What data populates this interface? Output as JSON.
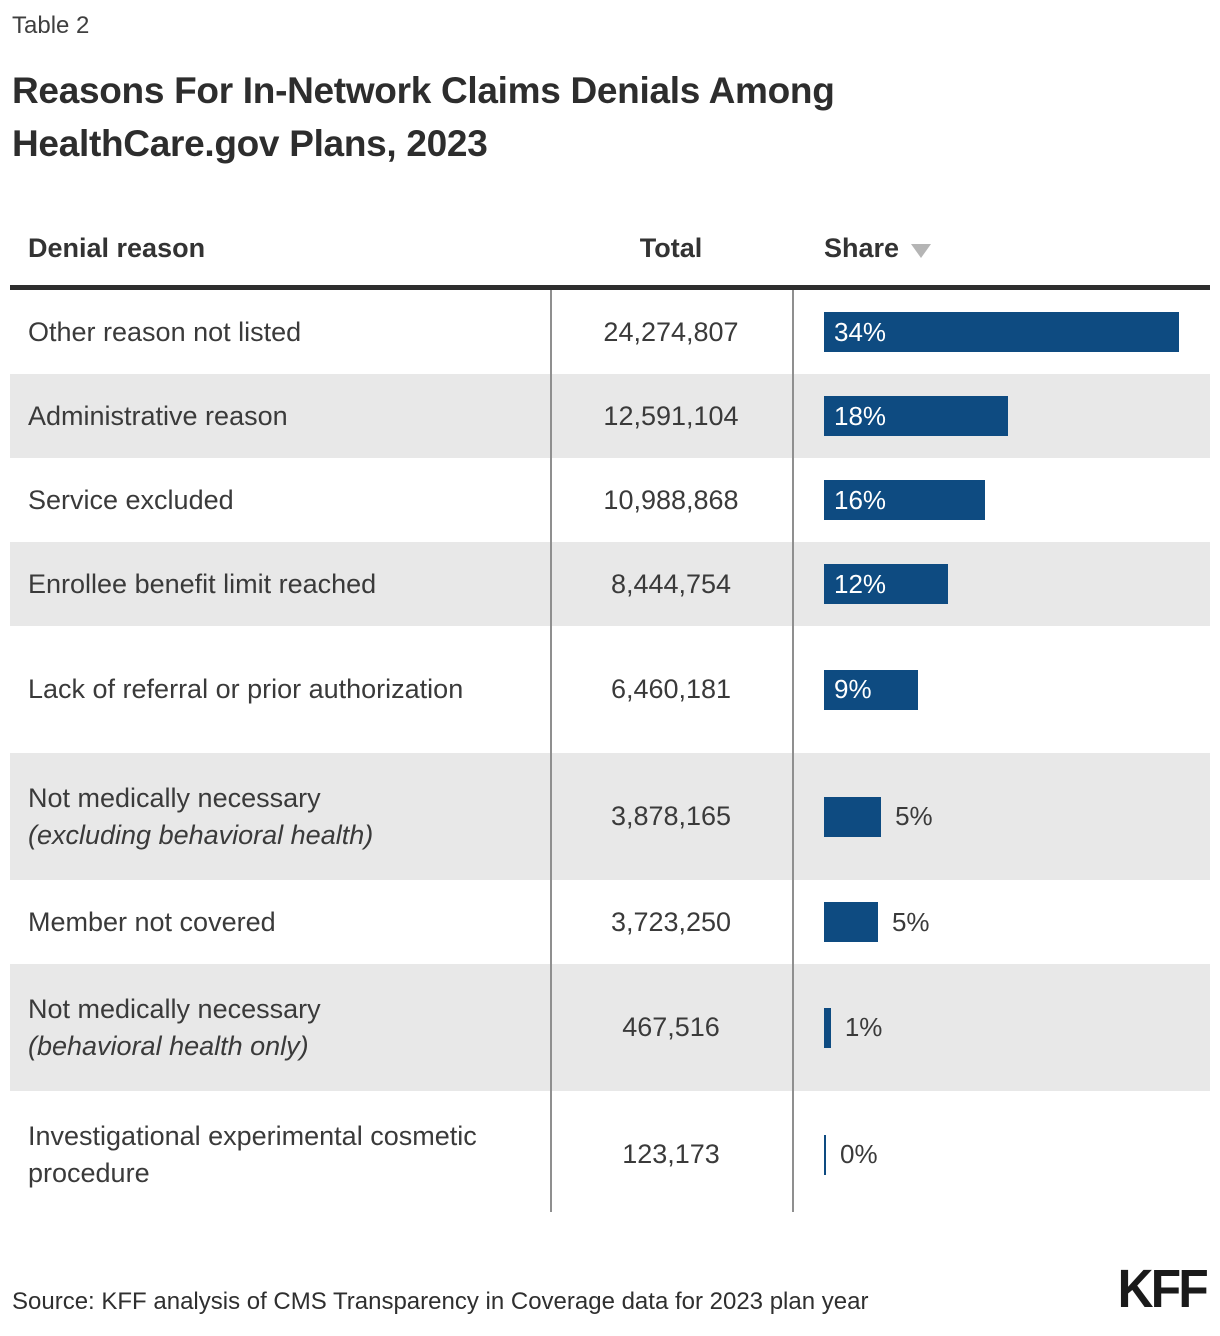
{
  "page": {
    "kicker": "Table 2",
    "title_line1": "Reasons For In-Network Claims Denials Among",
    "title_line2": "HealthCare.gov Plans, 2023",
    "source": "Source: KFF analysis of CMS Transparency in Coverage data for 2023 plan year",
    "logo": "KFF"
  },
  "columns": {
    "reason": "Denial reason",
    "total": "Total",
    "share": "Share"
  },
  "colors": {
    "bar_blue": "#0e4b81",
    "row_alt_gray": "#e8e8e8",
    "header_rule": "#2e2e2e"
  },
  "rows": [
    {
      "reason": "Other reason not listed",
      "note": "",
      "total": "24,274,807",
      "share_label": "34%",
      "share_pct": 34.2,
      "label_position": "inside"
    },
    {
      "reason": "Administrative reason",
      "note": "",
      "total": "12,591,104",
      "share_label": "18%",
      "share_pct": 17.7,
      "label_position": "inside"
    },
    {
      "reason": "Service excluded",
      "note": "",
      "total": "10,988,868",
      "share_label": "16%",
      "share_pct": 15.5,
      "label_position": "inside"
    },
    {
      "reason": "Enrollee benefit limit reached",
      "note": "",
      "total": "8,444,754",
      "share_label": "12%",
      "share_pct": 11.9,
      "label_position": "inside"
    },
    {
      "reason": "Lack of referral or prior authorization",
      "note": "",
      "total": "6,460,181",
      "share_label": "9%",
      "share_pct": 9.1,
      "label_position": "inside"
    },
    {
      "reason": "Not medically necessary",
      "note": "(excluding behavioral health)",
      "total": "3,878,165",
      "share_label": "5%",
      "share_pct": 5.5,
      "label_position": "outside"
    },
    {
      "reason": "Member not covered",
      "note": "",
      "total": "3,723,250",
      "share_label": "5%",
      "share_pct": 5.2,
      "label_position": "outside"
    },
    {
      "reason": "Not medically necessary",
      "note": "(behavioral health only)",
      "total": "467,516",
      "share_label": "1%",
      "share_pct": 0.66,
      "label_position": "outside"
    },
    {
      "reason": "Investigational experimental cosmetic procedure",
      "note": "",
      "total": "123,173",
      "share_label": "0%",
      "share_pct": 0.17,
      "label_position": "outside"
    }
  ],
  "chart_data": {
    "type": "bar",
    "title": "Reasons For In-Network Claims Denials Among HealthCare.gov Plans, 2023",
    "categories": [
      "Other reason not listed",
      "Administrative reason",
      "Service excluded",
      "Enrollee benefit limit reached",
      "Lack of referral or prior authorization",
      "Not medically necessary (excluding behavioral health)",
      "Member not covered",
      "Not medically necessary (behavioral health only)",
      "Investigational experimental cosmetic procedure"
    ],
    "series": [
      {
        "name": "Total",
        "values": [
          24274807,
          12591104,
          10988868,
          8444754,
          6460181,
          3878165,
          3723250,
          467516,
          123173
        ]
      },
      {
        "name": "Share",
        "values": [
          34,
          18,
          16,
          12,
          9,
          5,
          5,
          1,
          0
        ],
        "unit": "%"
      }
    ],
    "orientation": "horizontal",
    "bar_color": "#0e4b81",
    "xlabel": "",
    "ylabel": "",
    "legend": false,
    "grid": false,
    "sort": "Share descending"
  }
}
